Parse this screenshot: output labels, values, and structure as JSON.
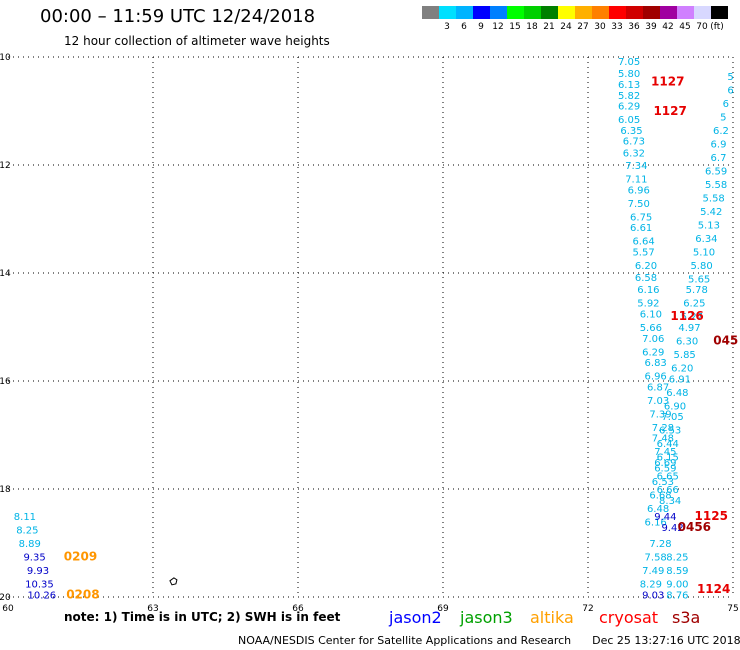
{
  "header": {
    "title": "00:00 – 11:59 UTC 12/24/2018",
    "subtitle": "12 hour collection of altimeter wave heights"
  },
  "colorbar": {
    "unit": "(ft)",
    "swatches": [
      {
        "label": "",
        "color": "#808080"
      },
      {
        "label": "3",
        "color": "#00e0ff"
      },
      {
        "label": "6",
        "color": "#00b4ff"
      },
      {
        "label": "9",
        "color": "#0000ff"
      },
      {
        "label": "12",
        "color": "#0080ff"
      },
      {
        "label": "15",
        "color": "#00ff00"
      },
      {
        "label": "18",
        "color": "#00d000"
      },
      {
        "label": "21",
        "color": "#008000"
      },
      {
        "label": "24",
        "color": "#ffff00"
      },
      {
        "label": "27",
        "color": "#ffb000"
      },
      {
        "label": "30",
        "color": "#ff8000"
      },
      {
        "label": "33",
        "color": "#ff0000"
      },
      {
        "label": "36",
        "color": "#d00000"
      },
      {
        "label": "39",
        "color": "#a00000"
      },
      {
        "label": "42",
        "color": "#a000a0"
      },
      {
        "label": "45",
        "color": "#d080ff"
      },
      {
        "label": "70",
        "color": "#d8d8ff"
      },
      {
        "label": "",
        "color": "#000000"
      }
    ]
  },
  "legend": {
    "note": "note: 1) Time is in UTC; 2) SWH is in feet",
    "satellites": [
      {
        "name": "jason2",
        "color": "#0000ff"
      },
      {
        "name": "jason3",
        "color": "#00a000"
      },
      {
        "name": "altika",
        "color": "#ffa000"
      },
      {
        "name": "cryosat",
        "color": "#ff0000"
      },
      {
        "name": "s3a",
        "color": "#a00000"
      }
    ]
  },
  "footer": {
    "credit": "NOAA/NESDIS Center for Satellite Applications and Research",
    "timestamp": "Dec 25 13:27:16 UTC 2018"
  },
  "chart_data": {
    "type": "scatter",
    "xlim": [
      60,
      75
    ],
    "ylim": [
      -20,
      -10
    ],
    "x_ticks": [
      "60",
      "63",
      "66",
      "69",
      "72",
      "75"
    ],
    "y_ticks": [
      "-10",
      "-12",
      "-14",
      "-16",
      "-18",
      "-20"
    ],
    "grid": true,
    "colors": {
      "cyan": "#00b4e6",
      "blue": "#0000c8",
      "orange": "#ff9600",
      "red": "#e60000",
      "darkred": "#a00000"
    },
    "series": [
      {
        "name": "jason3",
        "color_key": "cyan",
        "points": [
          [
            72.85,
            -10.07,
            "7.05"
          ],
          [
            72.85,
            -10.3,
            "5.80"
          ],
          [
            72.85,
            -10.5,
            "6.13"
          ],
          [
            72.85,
            -10.7,
            "5.82"
          ],
          [
            72.85,
            -10.9,
            "6.29"
          ],
          [
            72.85,
            -11.15,
            "6.05"
          ],
          [
            72.9,
            -11.35,
            "6.35"
          ],
          [
            72.95,
            -11.55,
            "6.73"
          ],
          [
            72.95,
            -11.77,
            "6.32"
          ],
          [
            73.0,
            -12.0,
            "7.34"
          ],
          [
            73.0,
            -12.25,
            "7.11"
          ],
          [
            73.05,
            -12.45,
            "6.96"
          ],
          [
            73.05,
            -12.7,
            "7.50"
          ],
          [
            73.1,
            -12.95,
            "6.75"
          ],
          [
            73.1,
            -13.15,
            "6.61"
          ],
          [
            73.15,
            -13.4,
            "6.64"
          ],
          [
            73.15,
            -13.6,
            "5.57"
          ],
          [
            73.2,
            -13.85,
            "6.20"
          ],
          [
            73.2,
            -14.07,
            "6.58"
          ],
          [
            73.25,
            -14.3,
            "6.16"
          ],
          [
            73.25,
            -14.55,
            "5.92"
          ],
          [
            73.3,
            -14.75,
            "6.10"
          ],
          [
            73.3,
            -15.0,
            "5.66"
          ],
          [
            73.35,
            -15.2,
            "7.06"
          ],
          [
            73.35,
            -15.45,
            "6.29"
          ],
          [
            73.4,
            -15.65,
            "6.83"
          ],
          [
            73.4,
            -15.9,
            "6.96"
          ],
          [
            73.45,
            -16.1,
            "6.87"
          ],
          [
            73.45,
            -16.35,
            "7.03"
          ],
          [
            73.5,
            -16.6,
            "7.39"
          ],
          [
            73.55,
            -16.85,
            "7.28"
          ],
          [
            73.55,
            -17.05,
            "7.48"
          ],
          [
            73.6,
            -17.3,
            "7.45"
          ],
          [
            73.6,
            -17.5,
            "6.69"
          ],
          [
            73.65,
            -17.75,
            "6.65"
          ],
          [
            73.65,
            -18.0,
            "6.66"
          ],
          [
            73.7,
            -18.2,
            "8.34"
          ],
          [
            73.5,
            -19.0,
            "7.28"
          ],
          [
            73.4,
            -19.25,
            "7.58"
          ],
          [
            73.35,
            -19.5,
            "7.49"
          ],
          [
            73.3,
            -19.75,
            "8.29"
          ],
          [
            73.85,
            -19.25,
            "8.25"
          ],
          [
            73.85,
            -19.5,
            "8.59"
          ],
          [
            73.85,
            -19.75,
            "9.00"
          ],
          [
            73.85,
            -19.95,
            "8.76"
          ],
          [
            74.95,
            -10.35,
            "5"
          ],
          [
            74.95,
            -10.6,
            "6"
          ],
          [
            74.85,
            -10.85,
            "6"
          ],
          [
            74.8,
            -11.1,
            "5"
          ],
          [
            74.75,
            -11.35,
            "6.2"
          ],
          [
            74.7,
            -11.6,
            "6.9"
          ],
          [
            74.7,
            -11.85,
            "6.7"
          ],
          [
            74.65,
            -12.1,
            "6.59"
          ],
          [
            74.65,
            -12.35,
            "5.58"
          ],
          [
            74.6,
            -12.6,
            "5.58"
          ],
          [
            74.55,
            -12.85,
            "5.42"
          ],
          [
            74.5,
            -13.1,
            "5.13"
          ],
          [
            74.45,
            -13.35,
            "6.34"
          ],
          [
            74.4,
            -13.6,
            "5.10"
          ],
          [
            74.35,
            -13.85,
            "5.80"
          ],
          [
            74.3,
            -14.1,
            "5.65"
          ],
          [
            74.25,
            -14.3,
            "5.78"
          ],
          [
            74.2,
            -14.55,
            "6.25"
          ],
          [
            74.15,
            -14.8,
            "5.27"
          ],
          [
            74.1,
            -15.0,
            "4.97"
          ],
          [
            74.05,
            -15.25,
            "6.30"
          ],
          [
            74.0,
            -15.5,
            "5.85"
          ],
          [
            73.95,
            -15.75,
            "6.20"
          ],
          [
            73.9,
            -15.95,
            "6.91"
          ],
          [
            73.85,
            -16.2,
            "6.48"
          ],
          [
            73.8,
            -16.45,
            "6.90"
          ],
          [
            73.75,
            -16.65,
            "7.05"
          ],
          [
            73.7,
            -16.9,
            "6.53"
          ],
          [
            73.65,
            -17.15,
            "6.44"
          ],
          [
            73.65,
            -17.4,
            "6.15"
          ],
          [
            73.6,
            -17.6,
            "6.59"
          ],
          [
            73.55,
            -17.85,
            "6.53"
          ],
          [
            73.5,
            -18.1,
            "6.68"
          ],
          [
            73.45,
            -18.35,
            "6.48"
          ],
          [
            73.4,
            -18.6,
            "6.16"
          ],
          [
            60.35,
            -18.5,
            "8.11"
          ],
          [
            60.4,
            -18.75,
            "8.25"
          ],
          [
            60.45,
            -19.0,
            "8.89"
          ]
        ]
      },
      {
        "name": "jason2",
        "color_key": "blue",
        "points": [
          [
            60.55,
            -19.25,
            "9.35"
          ],
          [
            60.62,
            -19.5,
            "9.93"
          ],
          [
            60.65,
            -19.75,
            "10.35"
          ],
          [
            60.7,
            -19.95,
            "10.26"
          ],
          [
            73.35,
            -19.95,
            "9.03"
          ],
          [
            73.6,
            -18.5,
            "9.44"
          ],
          [
            73.75,
            -18.7,
            "9.42"
          ]
        ]
      },
      {
        "name": "altika",
        "color_key": "orange",
        "points": [
          [
            61.5,
            -19.25,
            "0209"
          ],
          [
            61.55,
            -19.95,
            "0208"
          ]
        ]
      },
      {
        "name": "cryosat",
        "color_key": "red",
        "points": [
          [
            73.65,
            -10.45,
            "1127"
          ],
          [
            73.7,
            -11.0,
            "1127"
          ],
          [
            74.05,
            -14.8,
            "1126"
          ],
          [
            74.55,
            -18.5,
            "1125"
          ],
          [
            74.6,
            -19.85,
            "1124"
          ]
        ]
      },
      {
        "name": "s3a",
        "color_key": "darkred",
        "points": [
          [
            74.85,
            -15.25,
            "045"
          ],
          [
            74.2,
            -18.7,
            "0456"
          ]
        ]
      }
    ]
  }
}
